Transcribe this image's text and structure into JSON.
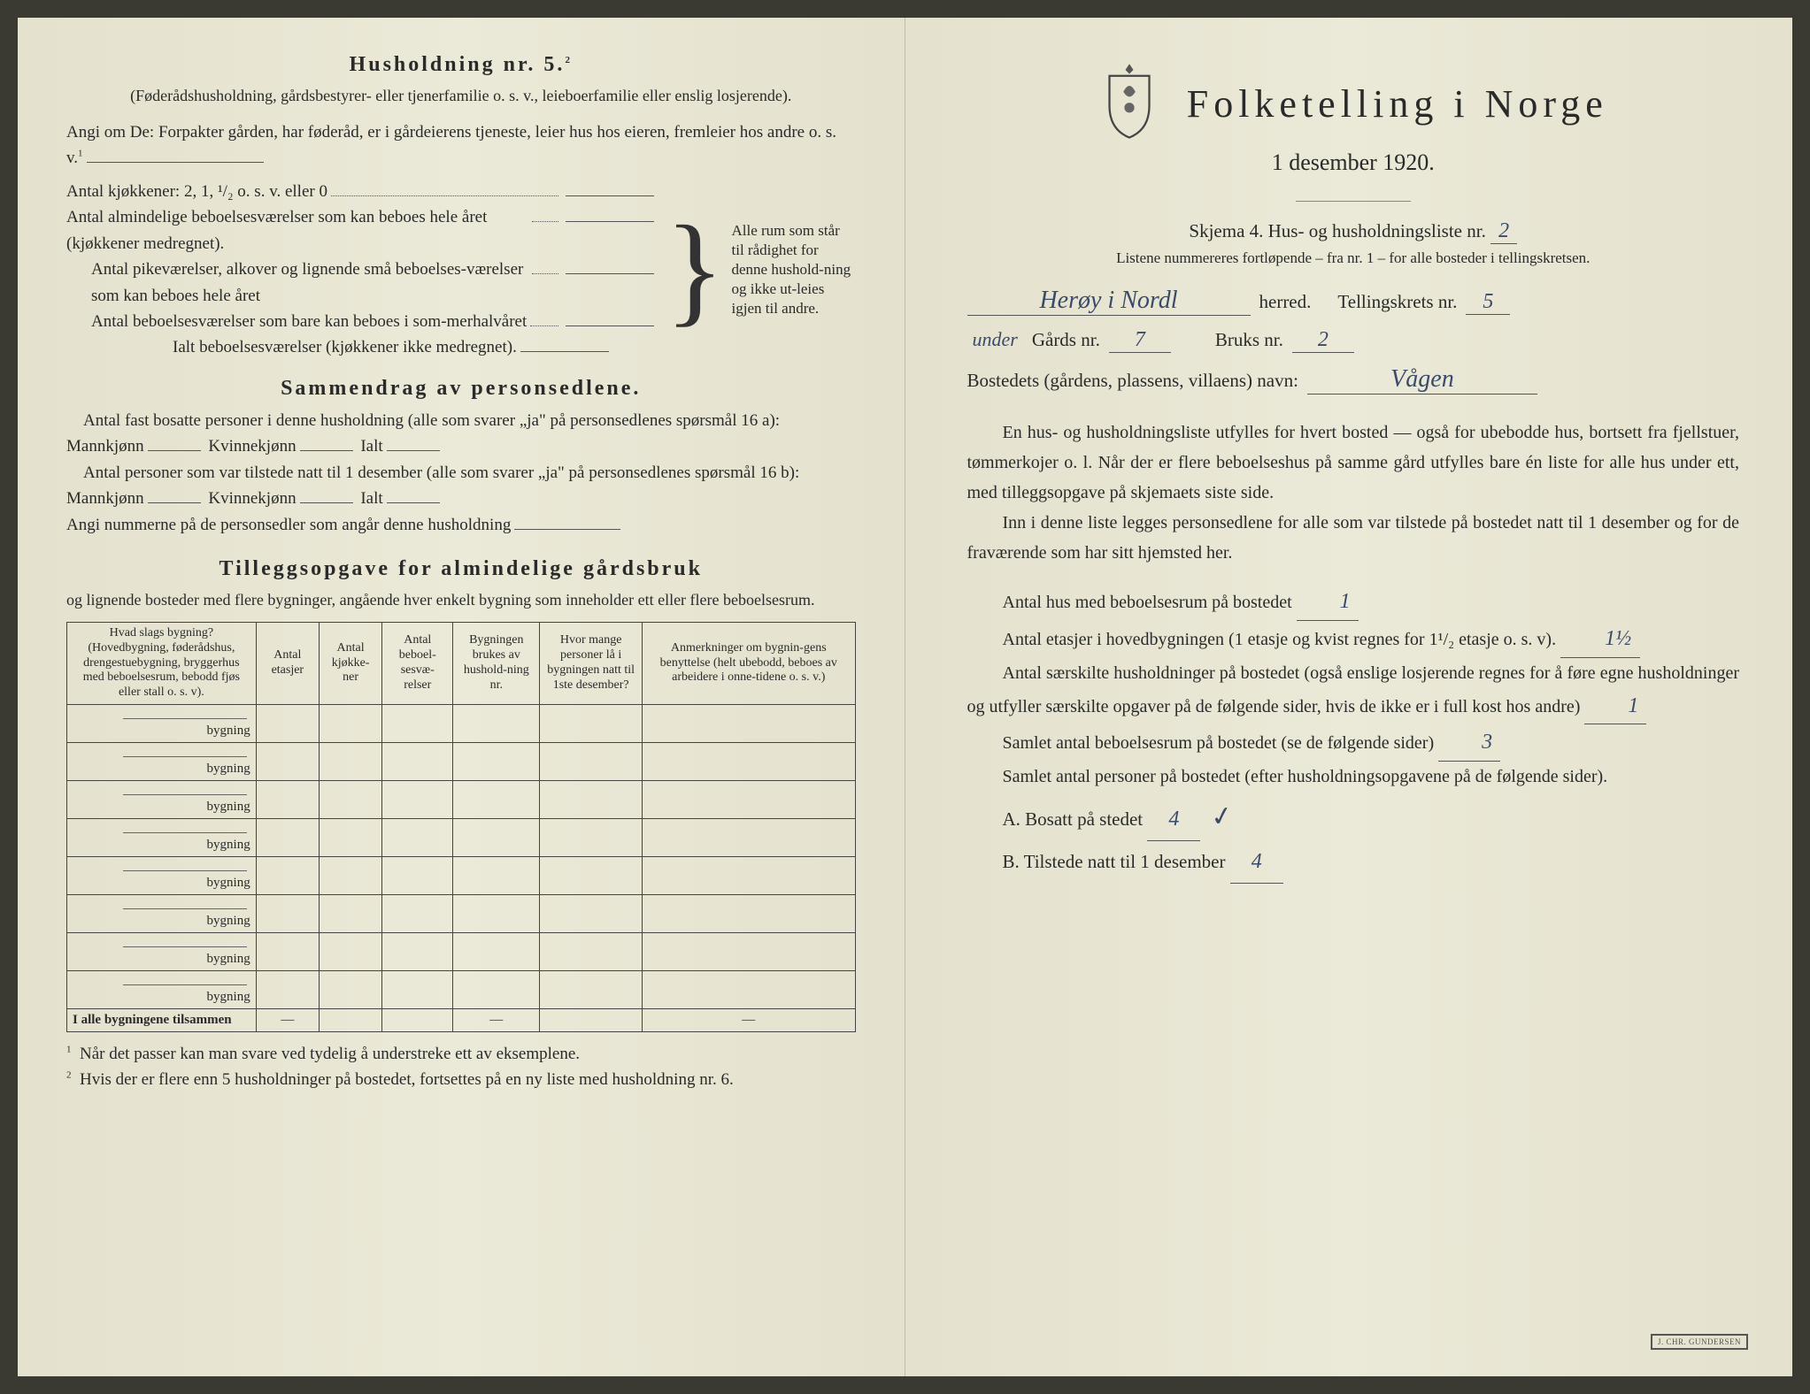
{
  "left": {
    "husholdning_title": "Husholdning nr. 5.",
    "husholdning_sup": "2",
    "husholdning_sub": "(Føderådshusholdning, gårdsbestyrer- eller tjenerfamilie o. s. v., leieboerfamilie eller enslig losjerende).",
    "angi_om": "Angi om De: Forpakter gården, har føderåd, er i gårdeierens tjeneste, leier hus hos eieren, fremleier hos andre o. s. v.",
    "angi_om_sup": "1",
    "kitchen_line": "Antal kjøkkener: 2, 1, ¹/₂ o. s. v. eller 0",
    "room1": "Antal almindelige beboelsesværelser som kan beboes hele året (kjøkkener medregnet).",
    "room2": "Antal pikeværelser, alkover og lignende små beboelses-værelser som kan beboes hele året",
    "room3": "Antal beboelsesværelser som bare kan beboes i som-merhalvåret",
    "room_total": "Ialt beboelsesværelser (kjøkkener ikke medregnet).",
    "brace_text": "Alle rum som står til rådighet for denne hushold-ning og ikke ut-leies igjen til andre.",
    "sammendrag_title": "Sammendrag av personsedlene.",
    "samm_p1_a": "Antal fast bosatte personer i denne husholdning (alle som svarer „ja\" på personsedlenes spørsmål 16 a): Mannkjønn",
    "samm_kvinne": "Kvinnekjønn",
    "samm_ialt": "Ialt",
    "samm_p2_a": "Antal personer som var tilstede natt til 1 desember (alle som svarer „ja\" på personsedlenes spørsmål 16 b): Mannkjønn",
    "angi_nummerne": "Angi nummerne på de personsedler som angår denne husholdning",
    "tillegg_title": "Tilleggsopgave for almindelige gårdsbruk",
    "tillegg_sub": "og lignende bosteder med flere bygninger, angående hver enkelt bygning som inneholder ett eller flere beboelsesrum.",
    "table": {
      "col1": "Hvad slags bygning?\n(Hovedbygning, føderådshus, drengestuebygning, bryggerhus med beboelsesrum, bebodd fjøs eller stall o. s. v).",
      "col2": "Antal etasjer",
      "col3": "Antal kjøkke-ner",
      "col4": "Antal beboel-sesvæ-relser",
      "col5": "Bygningen brukes av hushold-ning nr.",
      "col6": "Hvor mange personer lå i bygningen natt til 1ste desember?",
      "col7": "Anmerkninger om bygnin-gens benyttelse (helt ubebodd, beboes av arbeidere i onne-tidene o. s. v.)",
      "row_label": "bygning",
      "sum_row": "I alle bygningene tilsammen",
      "dash": "—"
    },
    "footnote1": "Når det passer kan man svare ved tydelig å understreke ett av eksemplene.",
    "footnote2": "Hvis der er flere enn 5 husholdninger på bostedet, fortsettes på en ny liste med husholdning nr. 6."
  },
  "right": {
    "main_title": "Folketelling i Norge",
    "date": "1 desember 1920.",
    "skjema": "Skjema 4.   Hus- og husholdningsliste nr.",
    "skjema_nr": "2",
    "liste_note": "Listene nummereres fortløpende – fra nr. 1 – for alle bosteder i tellingskretsen.",
    "herred_value": "Herøy i Nordl",
    "herred_label": "herred.",
    "tellingskrets_label": "Tellingskrets nr.",
    "tellingskrets_nr": "5",
    "under": "under",
    "gards_label": "Gårds nr.",
    "gards_nr": "7",
    "bruks_label": "Bruks nr.",
    "bruks_nr": "2",
    "bosted_label": "Bostedets (gårdens, plassens, villaens) navn:",
    "bosted_value": "Vågen",
    "para1": "En hus- og husholdningsliste utfylles for hvert bosted — også for ubebodde hus, bortsett fra fjellstuer, tømmerkojer o. l. Når der er flere beboelseshus på samme gård utfylles bare én liste for alle hus under ett, med tilleggsopgave på skjemaets siste side.",
    "para2": "Inn i denne liste legges personsedlene for alle som var tilstede på bostedet natt til 1 desember og for de fraværende som har sitt hjemsted her.",
    "antal_hus_label": "Antal hus med beboelsesrum på bostedet",
    "antal_hus_val": "1",
    "antal_etasjer_label_a": "Antal etasjer i hovedbygningen (1 etasje og kvist regnes for 1¹/₂ etasje o. s. v).",
    "antal_etasjer_val": "1½",
    "saerskilte_label": "Antal særskilte husholdninger på bostedet (også enslige losjerende regnes for å føre egne husholdninger og utfyller særskilte opgaver på de følgende sider, hvis de ikke er i full kost hos andre)",
    "saerskilte_val": "1",
    "samlet_rum_label": "Samlet antal beboelsesrum på bostedet (se de følgende sider)",
    "samlet_rum_val": "3",
    "samlet_pers_label": "Samlet antal personer på bostedet (efter husholdningsopgavene på de følgende sider).",
    "bosatt_label": "A.  Bosatt på stedet",
    "bosatt_val": "4",
    "tilstede_label": "B.  Tilstede natt til 1 desember",
    "tilstede_val": "4"
  },
  "colors": {
    "paper": "#e8e6d4",
    "ink": "#2a2a2a",
    "handwriting": "#3a4a6a"
  }
}
